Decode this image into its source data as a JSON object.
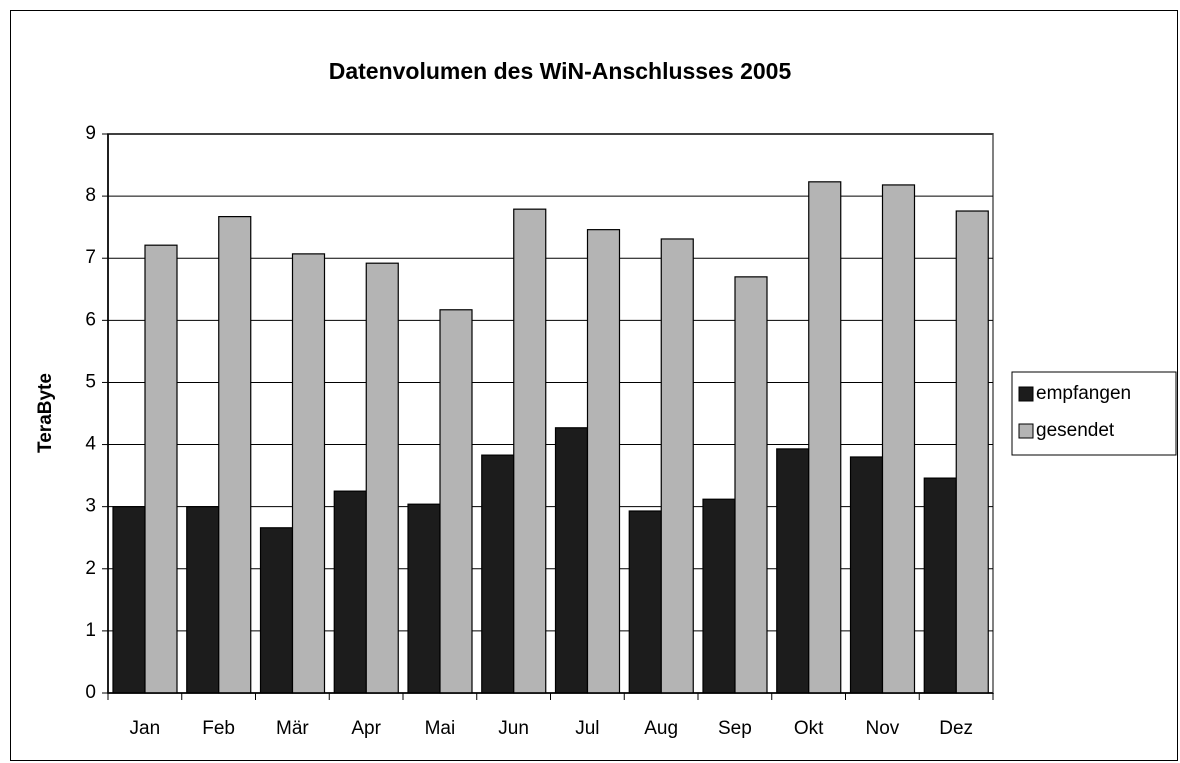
{
  "chart_data": {
    "type": "bar",
    "title": "Datenvolumen des WiN-Anschlusses 2005",
    "y_label": "TeraByte",
    "categories": [
      "Jan",
      "Feb",
      "Mär",
      "Apr",
      "Mai",
      "Jun",
      "Jul",
      "Aug",
      "Sep",
      "Okt",
      "Nov",
      "Dez"
    ],
    "series": [
      {
        "name": "empfangen",
        "color": "#1c1c1c",
        "values": [
          3.0,
          3.0,
          2.66,
          3.25,
          3.04,
          3.83,
          4.27,
          2.93,
          3.12,
          3.93,
          3.8,
          3.46
        ]
      },
      {
        "name": "gesendet",
        "color": "#b4b4b4",
        "values": [
          7.21,
          7.67,
          7.07,
          6.92,
          6.17,
          7.79,
          7.46,
          7.31,
          6.7,
          8.23,
          8.18,
          7.76
        ]
      }
    ],
    "ylim": [
      0,
      9
    ],
    "yticks": [
      0,
      1,
      2,
      3,
      4,
      5,
      6,
      7,
      8,
      9
    ],
    "grid": true,
    "legend": "right"
  }
}
